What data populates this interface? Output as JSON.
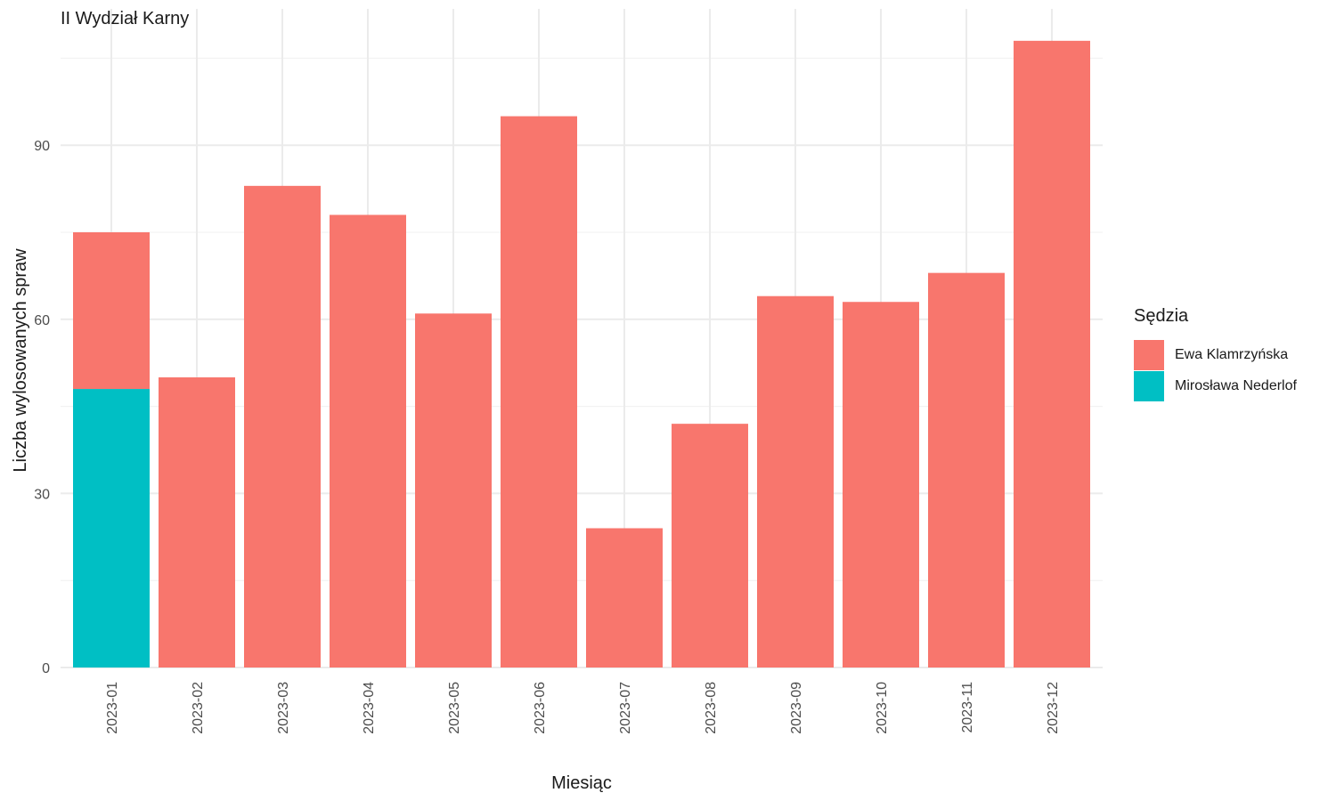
{
  "chart_data": {
    "type": "bar",
    "stacked": true,
    "title": "II Wydział Karny",
    "xlabel": "Miesiąc",
    "ylabel": "Liczba wylosowanych spraw",
    "ylim": [
      0,
      110
    ],
    "yticks": [
      0,
      30,
      60,
      90
    ],
    "grid": true,
    "legend_position": "right",
    "legend_title": "Sędzia",
    "categories": [
      "2023-01",
      "2023-02",
      "2023-03",
      "2023-04",
      "2023-05",
      "2023-06",
      "2023-07",
      "2023-08",
      "2023-09",
      "2023-10",
      "2023-11",
      "2023-12"
    ],
    "series": [
      {
        "name": "Mirosława Nederlof",
        "color": "#00BFC4",
        "values": [
          48,
          0,
          0,
          0,
          0,
          0,
          0,
          0,
          0,
          0,
          0,
          0
        ]
      },
      {
        "name": "Ewa Klamrzyńska",
        "color": "#F8766D",
        "values": [
          27,
          50,
          83,
          78,
          61,
          95,
          24,
          42,
          64,
          63,
          68,
          108
        ]
      }
    ],
    "legend_order": [
      1,
      0
    ]
  }
}
